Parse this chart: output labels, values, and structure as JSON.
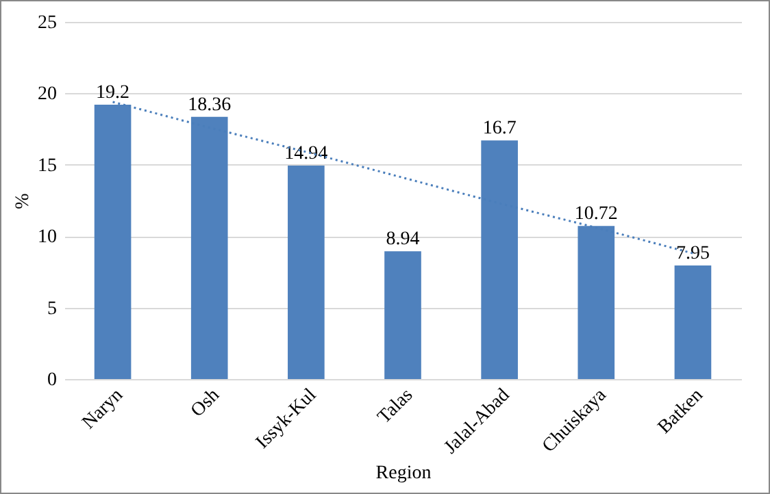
{
  "chart_data": {
    "type": "bar",
    "xlabel": "Region",
    "ylabel": "%",
    "categories": [
      "Naryn",
      "Osh",
      "Issyk-Kul",
      "Talas",
      "Jalal-Abad",
      "Chuiskaya",
      "Batken"
    ],
    "series": [
      {
        "color": "#4f81bd",
        "values": [
          19.2,
          18.36,
          14.94,
          8.94,
          16.7,
          10.72,
          7.95
        ],
        "data_labels": true
      },
      {
        "type": "line",
        "color": "#4a7ebb",
        "line_style": "dotted",
        "values": [
          19.4,
          17.6,
          15.9,
          14.1,
          12.3,
          10.6,
          8.8
        ]
      }
    ],
    "ylim": [
      0,
      25
    ],
    "yticks": [
      0,
      5,
      10,
      15,
      20,
      25
    ],
    "grid": "y"
  }
}
